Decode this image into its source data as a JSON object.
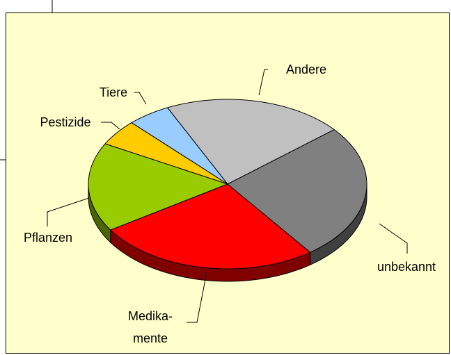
{
  "chart_data": {
    "type": "pie3d",
    "categories": [
      "Andere",
      "Tiere",
      "Pestizide",
      "Pflanzen",
      "Medika-\nmente",
      "unbekannt"
    ],
    "values": [
      21,
      5,
      5,
      17,
      26,
      26
    ],
    "colors": [
      "#c0c0c0",
      "#99ccff",
      "#ffcc00",
      "#99cc00",
      "#ff0000",
      "#808080"
    ],
    "side_colors": [
      "#606060",
      "#4c6680",
      "#806600",
      "#4c6600",
      "#800000",
      "#404040"
    ]
  }
}
